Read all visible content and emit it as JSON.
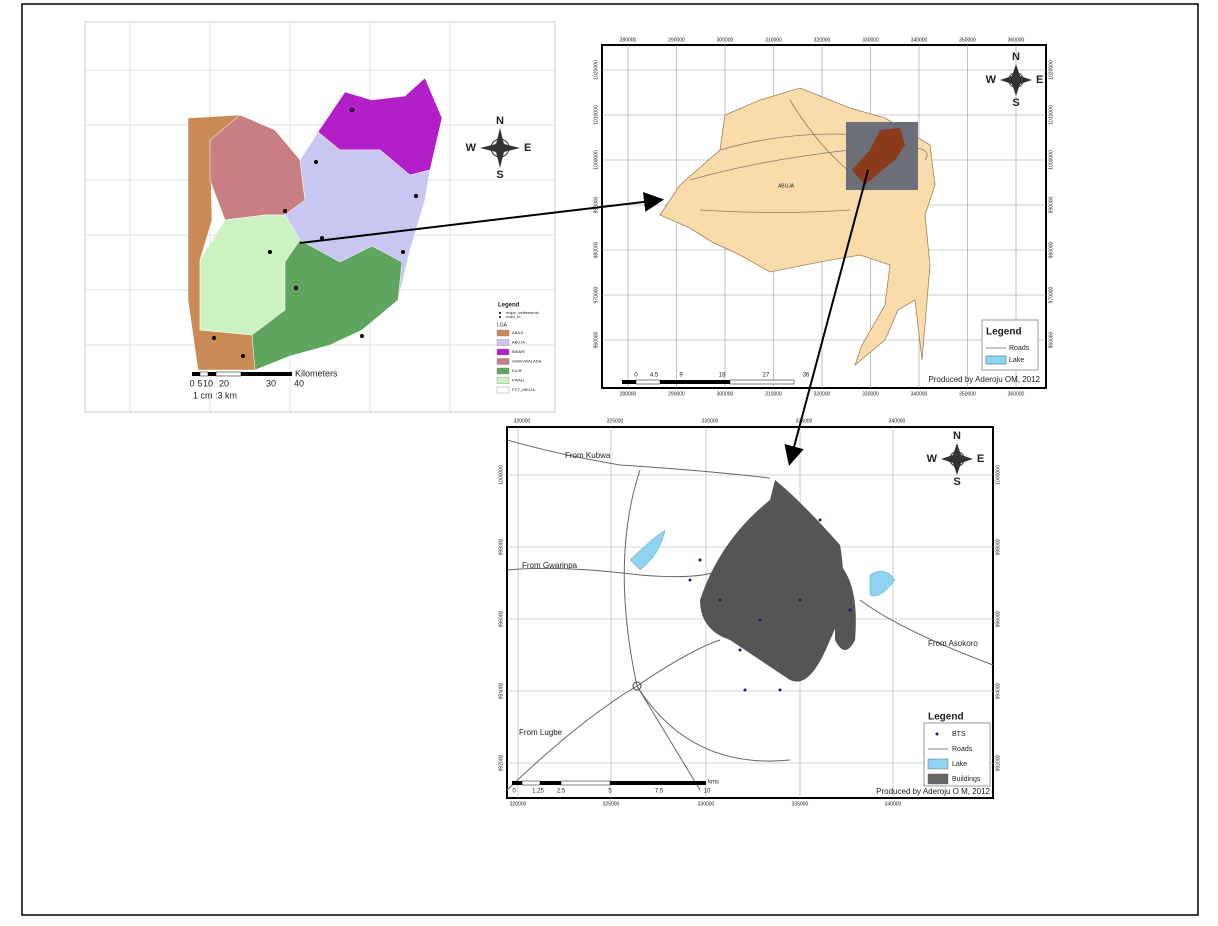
{
  "figure": {
    "map_lga": {
      "compass": [
        "N",
        "E",
        "S",
        "W"
      ],
      "legend_title": "Legend",
      "legend_items": [
        "major_settlements",
        "main_rd"
      ],
      "group_title": "LGA",
      "lga_items": [
        {
          "name": "ABAJI",
          "color": "#c98a55"
        },
        {
          "name": "ABUJA",
          "color": "#c9c6f2"
        },
        {
          "name": "BWARI",
          "color": "#b21fc8"
        },
        {
          "name": "GWAGWALADA",
          "color": "#c87f82"
        },
        {
          "name": "KUJE",
          "color": "#5fa55f"
        },
        {
          "name": "KWALI",
          "color": "#cdf2c2"
        },
        {
          "name": "FCT_ABUJA",
          "color": "#ffffff"
        }
      ],
      "scale_ticks": [
        0,
        5,
        10,
        20,
        30,
        40
      ],
      "scale_unit": "Kilometers",
      "scale_ratio": "1 cm :3 km"
    },
    "map_fct": {
      "compass": [
        "N",
        "E",
        "S",
        "W"
      ],
      "place_label": "ABUJA",
      "legend_title": "Legend",
      "legend_items": [
        {
          "name": "Roads",
          "color": "#888888"
        },
        {
          "name": "Lake",
          "color": "#8fd3f0"
        }
      ],
      "credit": "Produced by Aderoju OM, 2012",
      "scale_ticks": [
        0,
        4.5,
        9,
        18,
        27,
        36
      ],
      "x_ticks": [
        280000,
        290000,
        300000,
        310000,
        320000,
        330000,
        340000,
        350000,
        360000
      ],
      "y_ticks": [
        1020000,
        1010000,
        1000000,
        990000,
        980000,
        970000,
        960000
      ]
    },
    "map_city": {
      "compass": [
        "N",
        "E",
        "S",
        "W"
      ],
      "road_labels": [
        "From Kubwa",
        "From Gwarinpa",
        "From Asokoro",
        "From Lugbe"
      ],
      "legend_title": "Legend",
      "legend_items": [
        {
          "name": "BTS",
          "color": "#1a1a7a"
        },
        {
          "name": "Roads",
          "color": "#888888"
        },
        {
          "name": "Lake",
          "color": "#8fd3f0"
        },
        {
          "name": "Buildings",
          "color": "#666666"
        }
      ],
      "credit": "Produced by Aderoju O M, 2012",
      "scale_ticks": [
        0,
        1.25,
        2.5,
        5,
        7.5,
        10
      ],
      "scale_unit": "kms",
      "x_ticks": [
        320000,
        325000,
        330000,
        335000,
        340000
      ],
      "y_ticks": [
        1000000,
        998000,
        996000,
        994000,
        992000
      ]
    }
  }
}
